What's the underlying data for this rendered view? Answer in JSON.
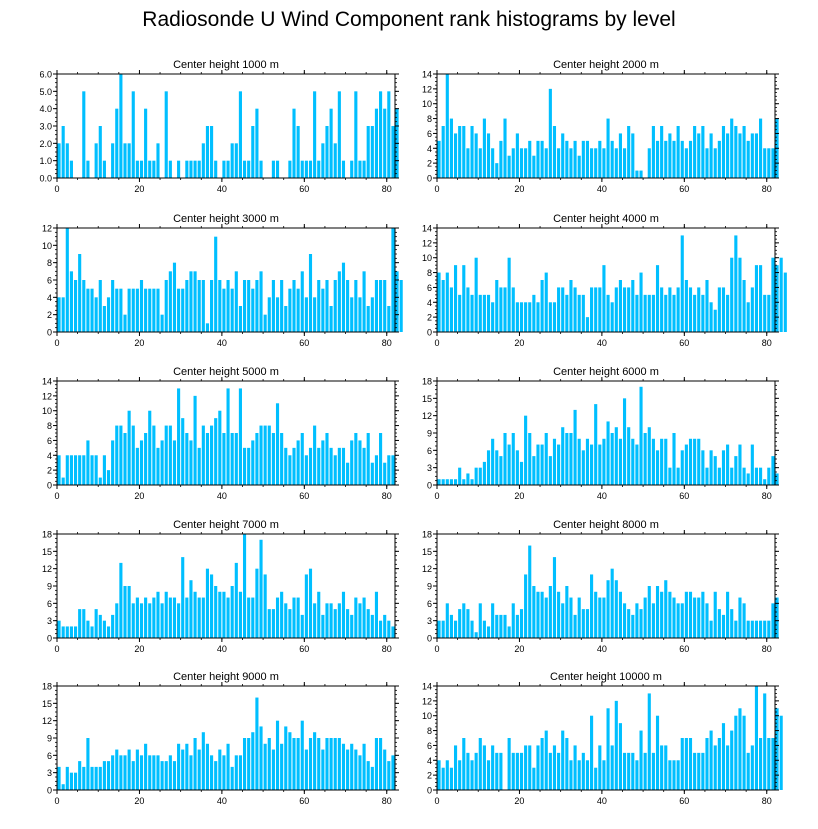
{
  "title": "Radiosonde U Wind Component rank histograms by level",
  "colors": {
    "bar": "#00BFFF",
    "axis": "#000000",
    "background": "#FFFFFF"
  },
  "chart_data": [
    {
      "type": "bar",
      "title": "Center height 1000 m",
      "xlabel": "",
      "ylabel": "",
      "xlim": [
        0,
        82
      ],
      "ylim": [
        0,
        6
      ],
      "yticks": [
        "0.0",
        "1.0",
        "2.0",
        "3.0",
        "4.0",
        "5.0",
        "6.0"
      ],
      "yticks_values": [
        0,
        1,
        2,
        3,
        4,
        5,
        6
      ],
      "xticks": [
        0,
        20,
        40,
        60,
        80
      ],
      "values": [
        2,
        3,
        2,
        1,
        0,
        0,
        5,
        1,
        0,
        2,
        3,
        1,
        0,
        2,
        4,
        6,
        2,
        2,
        5,
        1,
        1,
        4,
        1,
        1,
        2,
        0,
        5,
        1,
        0,
        1,
        0,
        1,
        1,
        1,
        1,
        2,
        3,
        3,
        1,
        0,
        1,
        1,
        2,
        2,
        5,
        1,
        1,
        3,
        4,
        1,
        0,
        0,
        1,
        1,
        0,
        0,
        1,
        4,
        3,
        1,
        1,
        1,
        5,
        1,
        2,
        3,
        4,
        2,
        5,
        1,
        0,
        1,
        5,
        1,
        1,
        3,
        3,
        4,
        5,
        4,
        5,
        3,
        4
      ]
    },
    {
      "type": "bar",
      "title": "Center height 2000 m",
      "xlabel": "",
      "ylabel": "",
      "xlim": [
        0,
        82
      ],
      "ylim": [
        0,
        14
      ],
      "yticks": [
        "0",
        "2",
        "4",
        "6",
        "8",
        "10",
        "12",
        "14"
      ],
      "yticks_values": [
        0,
        2,
        4,
        6,
        8,
        10,
        12,
        14
      ],
      "xticks": [
        0,
        20,
        40,
        60,
        80
      ],
      "values": [
        5,
        7,
        14,
        8,
        6,
        7,
        7,
        4,
        7,
        6,
        4,
        8,
        6,
        4,
        2,
        5,
        8,
        3,
        4,
        6,
        4,
        4,
        5,
        3,
        5,
        5,
        4,
        12,
        7,
        4,
        6,
        5,
        4,
        5,
        3,
        5,
        5,
        4,
        4,
        5,
        4,
        8,
        5,
        4,
        6,
        4,
        7,
        6,
        1,
        1,
        0,
        4,
        7,
        5,
        7,
        5,
        6,
        5,
        7,
        5,
        4,
        5,
        7,
        6,
        7,
        4,
        6,
        4,
        5,
        7,
        6,
        8,
        7,
        6,
        7,
        5,
        6,
        6,
        8,
        4,
        4,
        4,
        8
      ]
    },
    {
      "type": "bar",
      "title": "Center height 3000 m",
      "xlabel": "",
      "ylabel": "",
      "xlim": [
        0,
        82
      ],
      "ylim": [
        0,
        12
      ],
      "yticks": [
        "0",
        "2",
        "4",
        "6",
        "8",
        "10",
        "12"
      ],
      "yticks_values": [
        0,
        2,
        4,
        6,
        8,
        10,
        12
      ],
      "xticks": [
        0,
        20,
        40,
        60,
        80
      ],
      "values": [
        4,
        4,
        12,
        7,
        6,
        9,
        6,
        5,
        5,
        4,
        6,
        3,
        4,
        6,
        5,
        5,
        2,
        5,
        5,
        5,
        6,
        5,
        5,
        5,
        5,
        2,
        6,
        7,
        8,
        5,
        5,
        6,
        7,
        7,
        6,
        6,
        1,
        6,
        11,
        6,
        5,
        6,
        5,
        7,
        3,
        6,
        6,
        5,
        6,
        7,
        2,
        4,
        6,
        4,
        6,
        3,
        5,
        6,
        5,
        7,
        4,
        9,
        4,
        6,
        5,
        6,
        3,
        6,
        7,
        8,
        6,
        4,
        6,
        4,
        7,
        3,
        4,
        6,
        6,
        6,
        3,
        12,
        7,
        6
      ]
    },
    {
      "type": "bar",
      "title": "Center height 4000 m",
      "xlabel": "",
      "ylabel": "",
      "xlim": [
        0,
        82
      ],
      "ylim": [
        0,
        14
      ],
      "yticks": [
        "0",
        "2",
        "4",
        "6",
        "8",
        "10",
        "12",
        "14"
      ],
      "yticks_values": [
        0,
        2,
        4,
        6,
        8,
        10,
        12,
        14
      ],
      "xticks": [
        0,
        20,
        40,
        60,
        80
      ],
      "values": [
        8,
        7,
        8,
        6,
        9,
        5,
        9,
        6,
        5,
        10,
        5,
        5,
        5,
        4,
        7,
        6,
        6,
        10,
        6,
        4,
        4,
        4,
        4,
        5,
        4,
        7,
        8,
        4,
        4,
        6,
        6,
        5,
        7,
        6,
        5,
        5,
        2,
        6,
        6,
        6,
        9,
        5,
        4,
        6,
        7,
        6,
        6,
        7,
        5,
        8,
        5,
        5,
        5,
        9,
        6,
        5,
        6,
        5,
        6,
        13,
        7,
        6,
        5,
        6,
        5,
        7,
        4,
        3,
        6,
        6,
        5,
        10,
        13,
        10,
        7,
        4,
        6,
        9,
        9,
        5,
        5,
        10,
        9,
        10,
        8
      ]
    },
    {
      "type": "bar",
      "title": "Center height 5000 m",
      "xlabel": "",
      "ylabel": "",
      "xlim": [
        0,
        82
      ],
      "ylim": [
        0,
        14
      ],
      "yticks": [
        "0",
        "2",
        "4",
        "6",
        "8",
        "10",
        "12",
        "14"
      ],
      "yticks_values": [
        0,
        2,
        4,
        6,
        8,
        10,
        12,
        14
      ],
      "xticks": [
        0,
        20,
        40,
        60,
        80
      ],
      "values": [
        4,
        1,
        4,
        4,
        4,
        4,
        4,
        6,
        4,
        4,
        1,
        4,
        2,
        6,
        8,
        8,
        7,
        10,
        8,
        5,
        6,
        7,
        10,
        8,
        5,
        6,
        8,
        8,
        6,
        13,
        9,
        7,
        6,
        12,
        5,
        8,
        7,
        8,
        9,
        10,
        7,
        13,
        7,
        7,
        13,
        5,
        5,
        6,
        7,
        8,
        8,
        8,
        7,
        11,
        7,
        5,
        4,
        5,
        6,
        7,
        4,
        5,
        8,
        5,
        6,
        7,
        5,
        4,
        5,
        5,
        3,
        6,
        7,
        6,
        5,
        7,
        3,
        4,
        7,
        3,
        4,
        4
      ]
    },
    {
      "type": "bar",
      "title": "Center height 6000 m",
      "xlabel": "",
      "ylabel": "",
      "xlim": [
        0,
        82
      ],
      "ylim": [
        0,
        18
      ],
      "yticks": [
        "0",
        "3",
        "6",
        "9",
        "12",
        "15",
        "18"
      ],
      "yticks_values": [
        0,
        3,
        6,
        9,
        12,
        15,
        18
      ],
      "xticks": [
        0,
        20,
        40,
        60,
        80
      ],
      "values": [
        1,
        1,
        1,
        1,
        1,
        3,
        1,
        2,
        1,
        3,
        3,
        4,
        6,
        8,
        6,
        5,
        9,
        7,
        9,
        6,
        4,
        12,
        9,
        5,
        7,
        7,
        9,
        5,
        8,
        7,
        10,
        9,
        9,
        13,
        8,
        6,
        8,
        7,
        14,
        7,
        8,
        11,
        9,
        10,
        8,
        15,
        10,
        8,
        7,
        17,
        9,
        10,
        8,
        6,
        8,
        8,
        3,
        9,
        3,
        6,
        7,
        8,
        8,
        8,
        6,
        3,
        6,
        5,
        3,
        6,
        7,
        3,
        5,
        7,
        3,
        2,
        7,
        3,
        3,
        1,
        3,
        5,
        2
      ]
    },
    {
      "type": "bar",
      "title": "Center height 7000 m",
      "xlabel": "",
      "ylabel": "",
      "xlim": [
        0,
        82
      ],
      "ylim": [
        0,
        18
      ],
      "yticks": [
        "0",
        "3",
        "6",
        "9",
        "12",
        "15",
        "18"
      ],
      "yticks_values": [
        0,
        3,
        6,
        9,
        12,
        15,
        18
      ],
      "xticks": [
        0,
        20,
        40,
        60,
        80
      ],
      "values": [
        3,
        2,
        2,
        2,
        2,
        5,
        5,
        3,
        2,
        5,
        4,
        3,
        2,
        4,
        6,
        13,
        9,
        9,
        6,
        7,
        6,
        7,
        6,
        7,
        8,
        6,
        8,
        7,
        7,
        6,
        14,
        7,
        10,
        8,
        7,
        7,
        12,
        11,
        9,
        8,
        8,
        7,
        9,
        13,
        8,
        18,
        7,
        7,
        12,
        17,
        11,
        5,
        5,
        7,
        8,
        6,
        5,
        7,
        7,
        4,
        11,
        12,
        6,
        8,
        4,
        6,
        6,
        5,
        6,
        8,
        5,
        4,
        7,
        6,
        7,
        5,
        4,
        8,
        3,
        4,
        3,
        2
      ]
    },
    {
      "type": "bar",
      "title": "Center height 8000 m",
      "xlabel": "",
      "ylabel": "",
      "xlim": [
        0,
        82
      ],
      "ylim": [
        0,
        18
      ],
      "yticks": [
        "0",
        "3",
        "6",
        "9",
        "12",
        "15",
        "18"
      ],
      "yticks_values": [
        0,
        3,
        6,
        9,
        12,
        15,
        18
      ],
      "xticks": [
        0,
        20,
        40,
        60,
        80
      ],
      "values": [
        3,
        3,
        6,
        4,
        3,
        5,
        6,
        5,
        3,
        1,
        6,
        3,
        2,
        6,
        4,
        4,
        4,
        2,
        6,
        4,
        5,
        11,
        16,
        9,
        8,
        8,
        7,
        9,
        14,
        8,
        6,
        9,
        7,
        4,
        7,
        5,
        5,
        11,
        8,
        7,
        7,
        10,
        12,
        10,
        8,
        6,
        5,
        4,
        6,
        5,
        7,
        9,
        6,
        9,
        8,
        10,
        8,
        7,
        6,
        6,
        8,
        8,
        7,
        7,
        8,
        6,
        3,
        8,
        5,
        4,
        8,
        5,
        3,
        7,
        6,
        3,
        3,
        3,
        3,
        3,
        3,
        6,
        7
      ]
    },
    {
      "type": "bar",
      "title": "Center height 9000 m",
      "xlabel": "",
      "ylabel": "",
      "xlim": [
        0,
        82
      ],
      "ylim": [
        0,
        18
      ],
      "yticks": [
        "0",
        "3",
        "6",
        "9",
        "12",
        "15",
        "18"
      ],
      "yticks_values": [
        0,
        3,
        6,
        9,
        12,
        15,
        18
      ],
      "xticks": [
        0,
        20,
        40,
        60,
        80
      ],
      "values": [
        4,
        1,
        4,
        3,
        3,
        5,
        4,
        9,
        4,
        4,
        4,
        5,
        5,
        6,
        7,
        6,
        6,
        7,
        5,
        7,
        6,
        8,
        6,
        6,
        6,
        5,
        5,
        6,
        5,
        8,
        7,
        8,
        6,
        9,
        7,
        10,
        8,
        6,
        5,
        7,
        6,
        8,
        4,
        6,
        6,
        9,
        9,
        10,
        16,
        11,
        8,
        9,
        7,
        12,
        8,
        11,
        10,
        9,
        9,
        12,
        7,
        9,
        10,
        9,
        7,
        9,
        9,
        9,
        9,
        8,
        7,
        8,
        7,
        6,
        8,
        5,
        4,
        9,
        9,
        7,
        5,
        6
      ]
    },
    {
      "type": "bar",
      "title": "Center height 10000 m",
      "xlabel": "",
      "ylabel": "",
      "xlim": [
        0,
        82
      ],
      "ylim": [
        0,
        14
      ],
      "yticks": [
        "0",
        "2",
        "4",
        "6",
        "8",
        "10",
        "12",
        "14"
      ],
      "yticks_values": [
        0,
        2,
        4,
        6,
        8,
        10,
        12,
        14
      ],
      "xticks": [
        0,
        20,
        40,
        60,
        80
      ],
      "values": [
        4,
        3,
        4,
        3,
        6,
        4,
        7,
        5,
        4,
        5,
        7,
        6,
        4,
        6,
        5,
        5,
        0,
        7,
        5,
        5,
        5,
        6,
        6,
        3,
        6,
        7,
        8,
        5,
        6,
        5,
        8,
        7,
        4,
        6,
        4,
        5,
        4,
        10,
        3,
        6,
        4,
        11,
        6,
        12,
        9,
        5,
        5,
        5,
        4,
        8,
        5,
        13,
        5,
        10,
        6,
        6,
        4,
        4,
        4,
        7,
        7,
        7,
        5,
        5,
        5,
        7,
        8,
        6,
        7,
        9,
        6,
        8,
        10,
        11,
        10,
        5,
        6,
        14,
        7,
        13,
        7,
        7,
        11,
        10
      ]
    }
  ]
}
